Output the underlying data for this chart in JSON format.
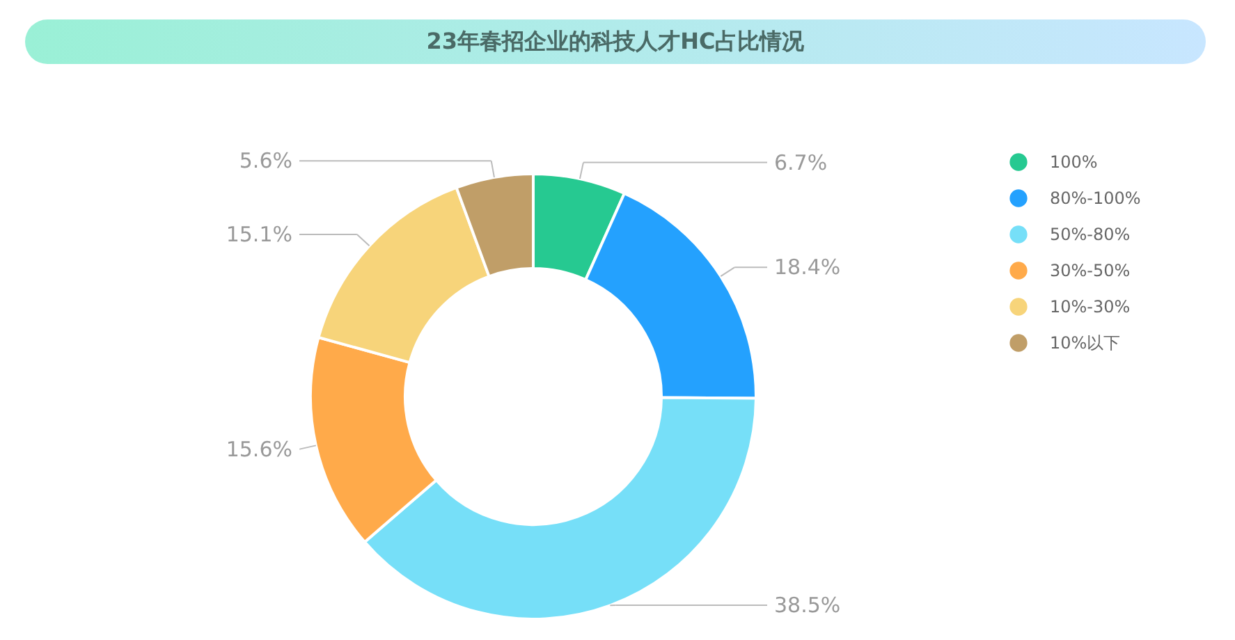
{
  "chart_data": {
    "type": "donut",
    "title": "23年春招企业的科技人才HC占比情况",
    "categories": [
      "100%",
      "80%-100%",
      "50%-80%",
      "30%-50%",
      "10%-30%",
      "10%以下"
    ],
    "values": [
      6.7,
      18.4,
      38.5,
      15.6,
      15.1,
      5.6
    ],
    "value_labels": [
      "6.7%",
      "18.4%",
      "38.5%",
      "15.6%",
      "15.1%",
      "5.6%"
    ],
    "colors": [
      "#26c991",
      "#24a1fe",
      "#76dff8",
      "#ffaa4a",
      "#f7d47a",
      "#c09e68"
    ],
    "legend": "right"
  }
}
